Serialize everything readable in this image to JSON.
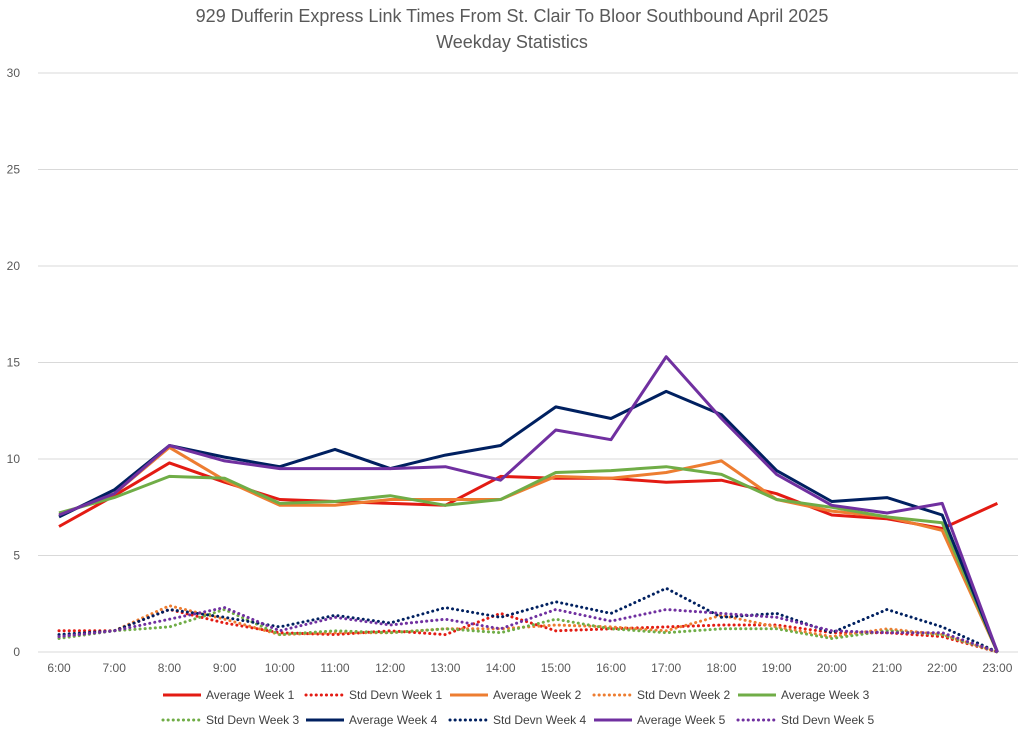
{
  "chart_data": {
    "type": "line",
    "title": "929 Dufferin Express Link Times From St. Clair To Bloor Southbound April 2025",
    "subtitle": "Weekday Statistics",
    "xlabel": "",
    "ylabel": "",
    "ylim": [
      0,
      30
    ],
    "yticks": [
      "0",
      "5",
      "10",
      "15",
      "20",
      "25",
      "30"
    ],
    "grid": "horizontal",
    "legend_position": "bottom",
    "categories": [
      "6:00",
      "7:00",
      "8:00",
      "9:00",
      "10:00",
      "11:00",
      "12:00",
      "13:00",
      "14:00",
      "15:00",
      "16:00",
      "17:00",
      "18:00",
      "19:00",
      "20:00",
      "21:00",
      "22:00",
      "23:00"
    ],
    "series": [
      {
        "name": "Average Week 1",
        "color": "#e31b13",
        "style": "solid",
        "values": [
          6.5,
          8.1,
          9.8,
          8.8,
          7.9,
          7.8,
          7.7,
          7.6,
          9.1,
          9.0,
          9.0,
          8.8,
          8.9,
          8.2,
          7.1,
          6.9,
          6.4,
          7.7
        ]
      },
      {
        "name": "Std Devn Week 1",
        "color": "#e31b13",
        "style": "dotted",
        "values": [
          1.1,
          1.1,
          2.2,
          1.5,
          1.0,
          0.9,
          1.1,
          0.9,
          2.0,
          1.1,
          1.2,
          1.3,
          1.4,
          1.4,
          1.0,
          1.0,
          0.8,
          0.0
        ]
      },
      {
        "name": "Average Week 2",
        "color": "#ed7d31",
        "style": "solid",
        "values": [
          7.1,
          8.2,
          10.6,
          8.9,
          7.6,
          7.6,
          7.9,
          7.9,
          7.9,
          9.1,
          9.0,
          9.3,
          9.9,
          7.9,
          7.3,
          7.0,
          6.3,
          0.0
        ]
      },
      {
        "name": "Std Devn Week 2",
        "color": "#ed7d31",
        "style": "dotted",
        "values": [
          0.8,
          1.1,
          2.4,
          1.7,
          0.9,
          1.0,
          1.0,
          1.2,
          1.2,
          1.4,
          1.3,
          1.1,
          1.9,
          1.3,
          0.8,
          1.2,
          0.9,
          0.0
        ]
      },
      {
        "name": "Average Week 3",
        "color": "#70ad47",
        "style": "solid",
        "values": [
          7.2,
          8.0,
          9.1,
          9.0,
          7.7,
          7.8,
          8.1,
          7.6,
          7.9,
          9.3,
          9.4,
          9.6,
          9.2,
          7.9,
          7.5,
          7.0,
          6.7,
          0.0
        ]
      },
      {
        "name": "Std Devn Week 3",
        "color": "#70ad47",
        "style": "dotted",
        "values": [
          0.7,
          1.1,
          1.3,
          2.2,
          0.9,
          1.1,
          1.0,
          1.2,
          1.0,
          1.7,
          1.2,
          1.0,
          1.2,
          1.2,
          0.7,
          1.1,
          0.9,
          0.0
        ]
      },
      {
        "name": "Average Week 4",
        "color": "#002060",
        "style": "solid",
        "values": [
          7.0,
          8.4,
          10.7,
          10.1,
          9.6,
          10.5,
          9.5,
          10.2,
          10.7,
          12.7,
          12.1,
          13.5,
          12.3,
          9.4,
          7.8,
          8.0,
          7.1,
          0.0
        ]
      },
      {
        "name": "Std Devn Week 4",
        "color": "#002060",
        "style": "dotted",
        "values": [
          0.9,
          1.1,
          2.2,
          1.8,
          1.3,
          1.9,
          1.5,
          2.3,
          1.8,
          2.6,
          2.0,
          3.3,
          1.8,
          2.0,
          1.0,
          2.2,
          1.3,
          0.0
        ]
      },
      {
        "name": "Average Week 5",
        "color": "#7030a0",
        "style": "solid",
        "values": [
          7.1,
          8.2,
          10.7,
          9.9,
          9.5,
          9.5,
          9.5,
          9.6,
          8.9,
          11.5,
          11.0,
          15.3,
          12.1,
          9.2,
          7.6,
          7.2,
          7.7,
          0.0
        ]
      },
      {
        "name": "Std Devn Week 5",
        "color": "#7030a0",
        "style": "dotted",
        "values": [
          0.8,
          1.1,
          1.7,
          2.3,
          1.1,
          1.8,
          1.4,
          1.7,
          1.2,
          2.2,
          1.6,
          2.2,
          2.0,
          1.8,
          1.1,
          1.0,
          1.0,
          0.0
        ]
      }
    ]
  }
}
